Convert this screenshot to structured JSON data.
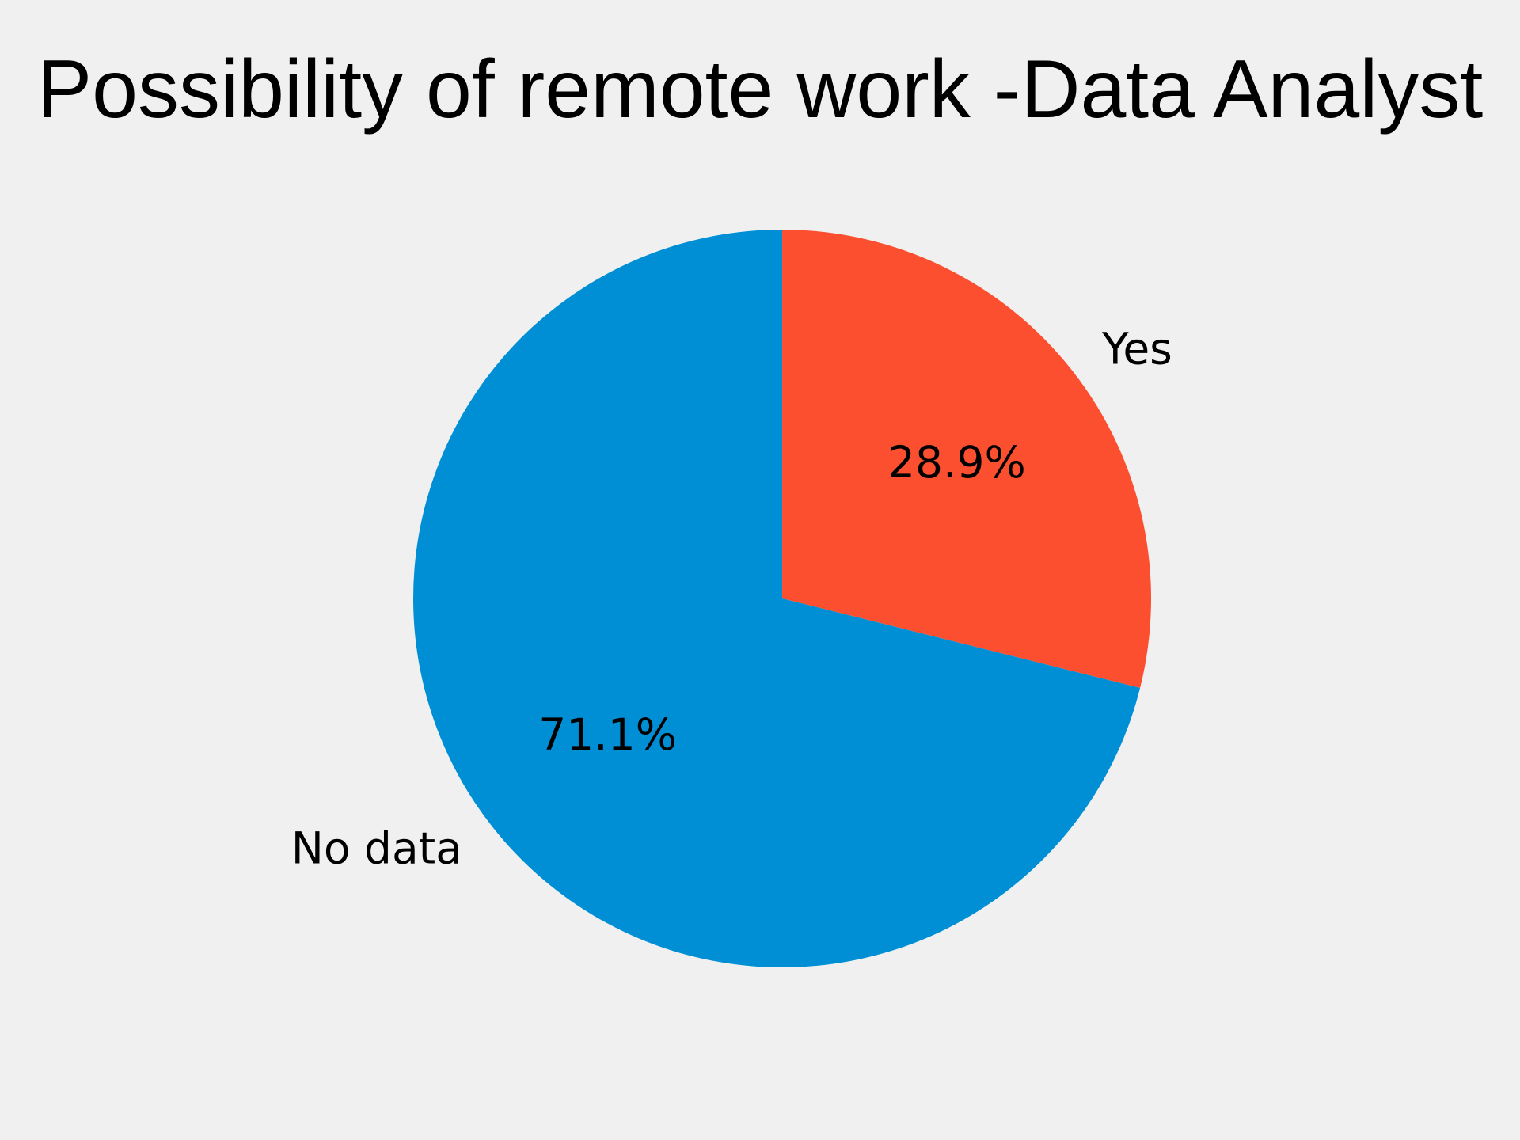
{
  "chart_data": {
    "type": "pie",
    "title": "Possibility of remote work -Data Analyst",
    "labels": [
      "Yes",
      "No data"
    ],
    "values": [
      28.9,
      71.1
    ],
    "value_labels": [
      "28.9%",
      "71.1%"
    ],
    "colors": [
      "#fc4f30",
      "#008fd5"
    ],
    "start_angle_deg": 90,
    "direction": "clockwise",
    "background": "#f0f0f0"
  }
}
